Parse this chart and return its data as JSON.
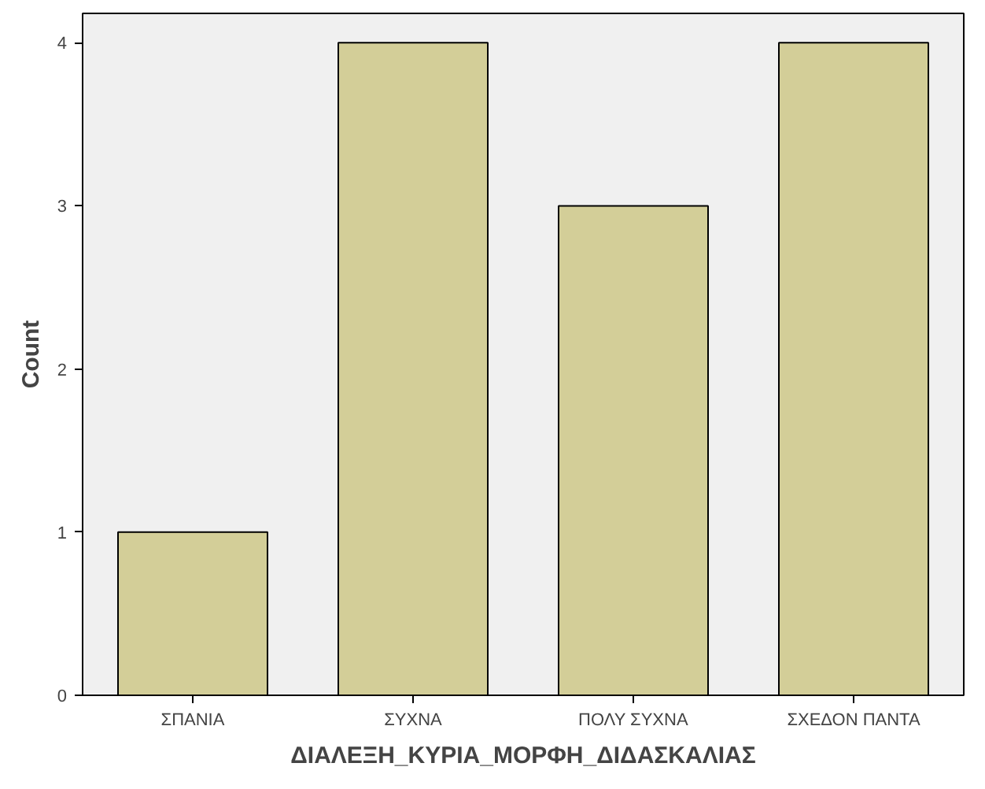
{
  "chart_data": {
    "type": "bar",
    "xlabel": "ΔΙΑΛΕΞΗ_ΚΥΡΙΑ_ΜΟΡΦΗ_ΔΙΔΑΣΚΑΛΙΑΣ",
    "ylabel": "Count",
    "categories": [
      "ΣΠΑΝΙΑ",
      "ΣΥΧΝΑ",
      "ΠΟΛΥ ΣΥΧΝΑ",
      "ΣΧΕΔΟΝ ΠΑΝΤΑ"
    ],
    "values": [
      1,
      4,
      3,
      4
    ],
    "color": "#d3ce98",
    "ylim": [
      0,
      4.18
    ],
    "yticks": [
      0,
      1,
      2,
      3,
      4
    ],
    "grid": false
  }
}
